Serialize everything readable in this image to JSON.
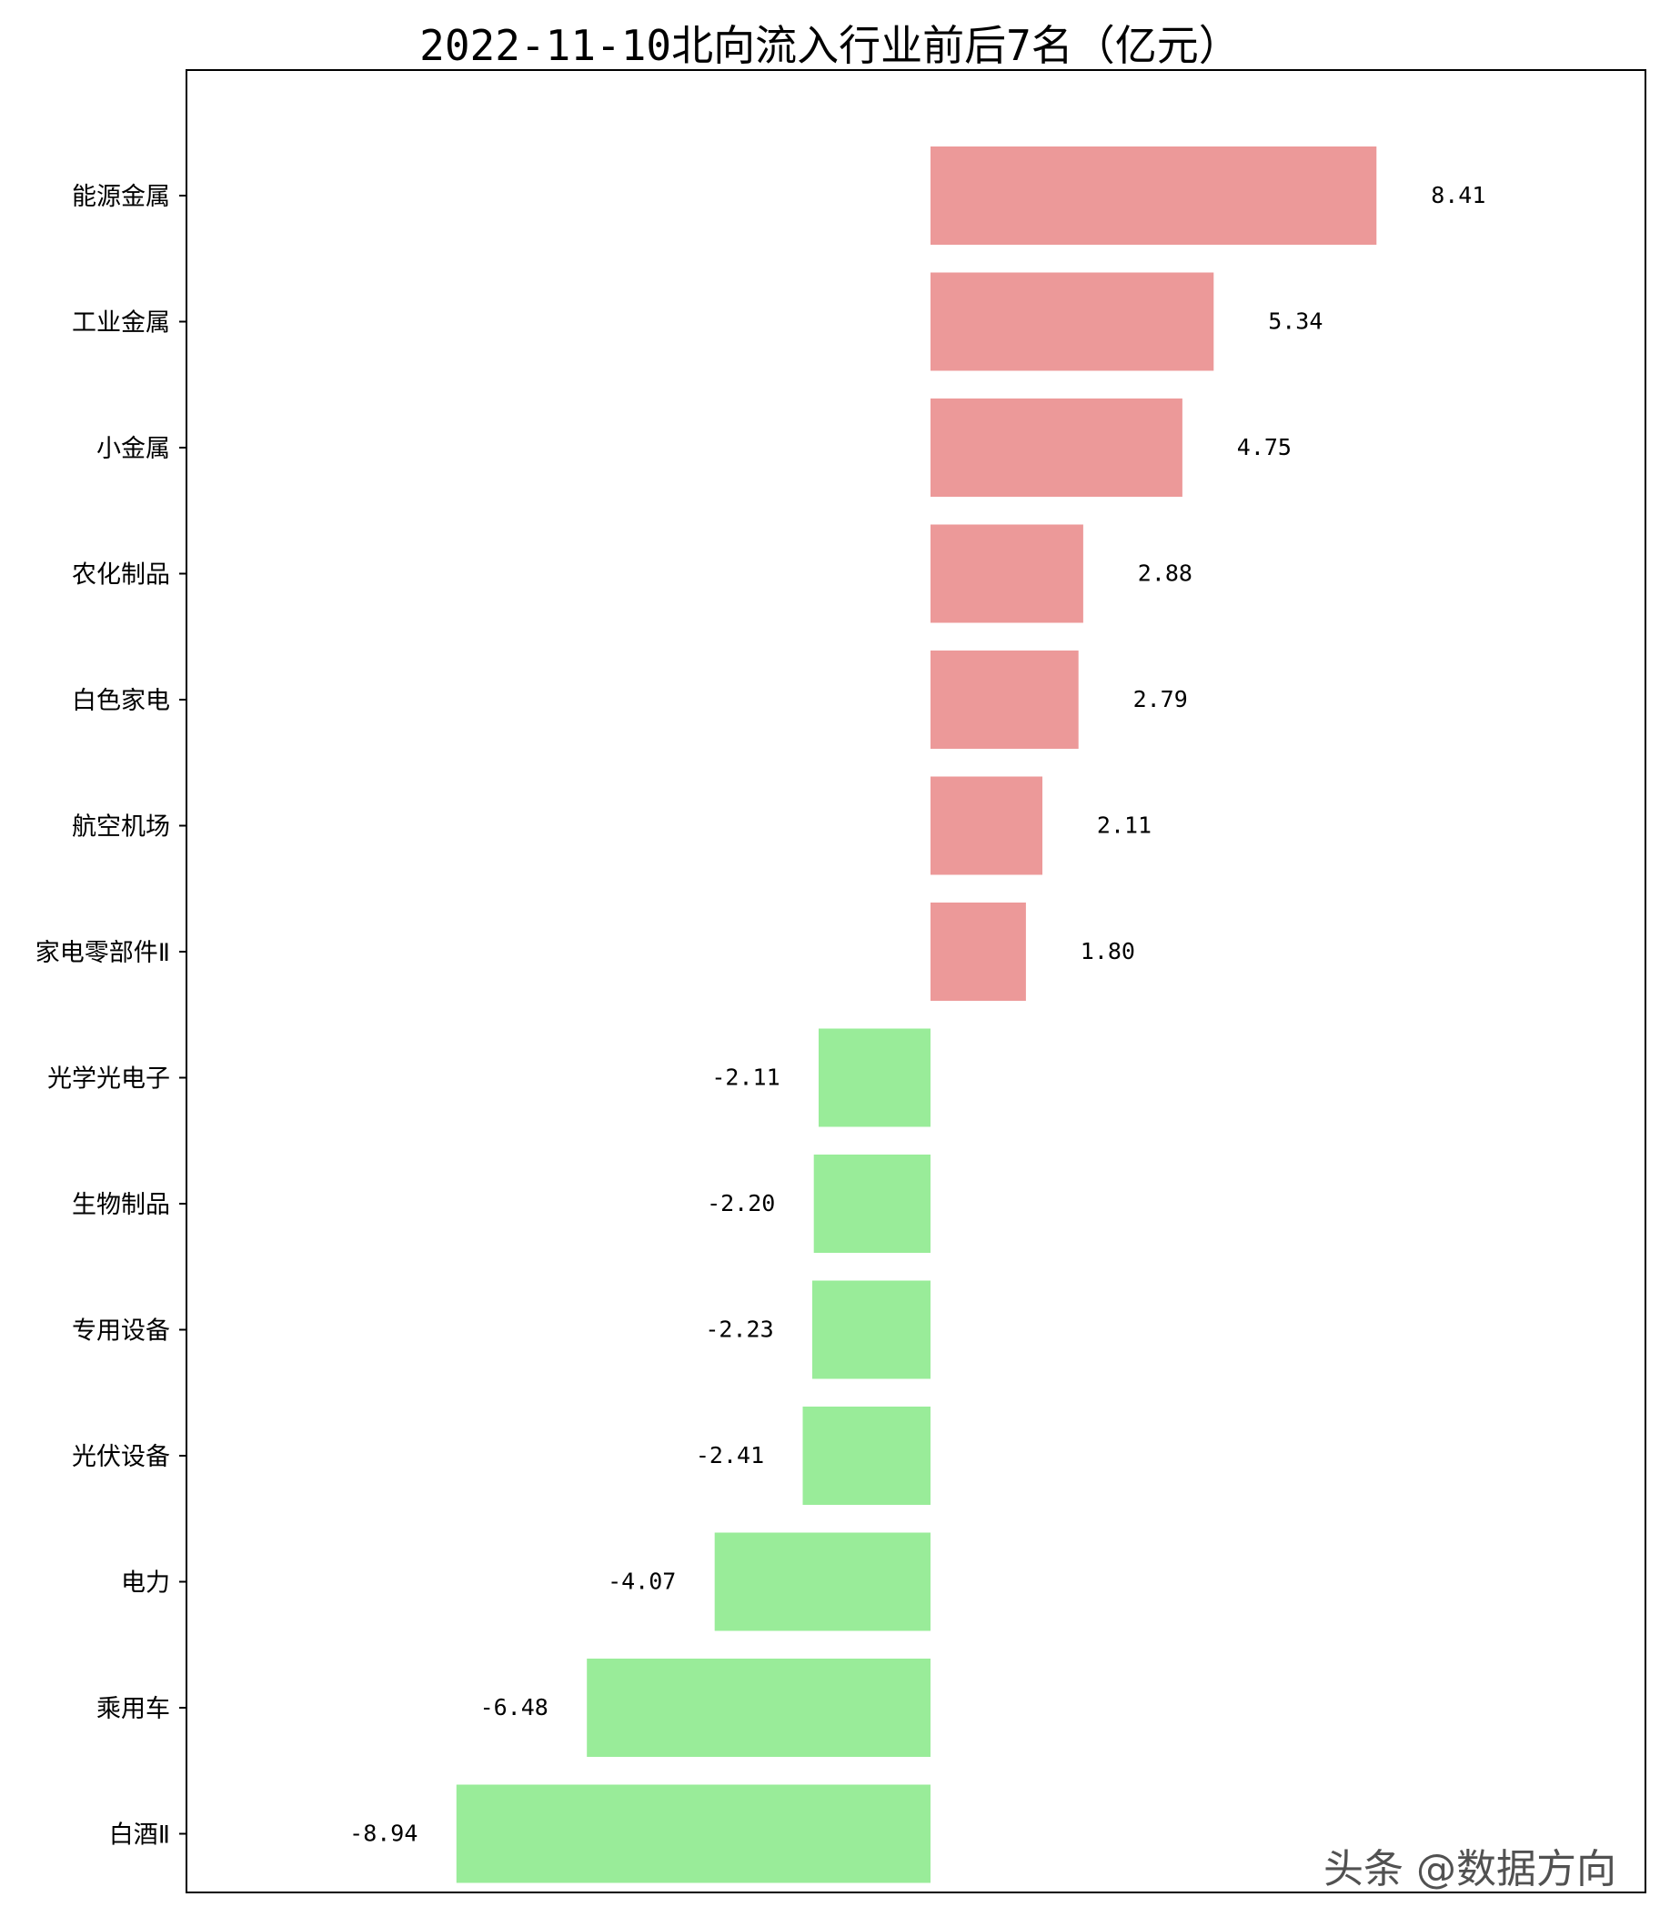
{
  "chart_data": {
    "type": "bar",
    "orientation": "horizontal",
    "title": "2022-11-10北向流入行业前后7名（亿元）",
    "categories": [
      "能源金属",
      "工业金属",
      "小金属",
      "农化制品",
      "白色家电",
      "航空机场",
      "家电零部件Ⅱ",
      "光学光电子",
      "生物制品",
      "专用设备",
      "光伏设备",
      "电力",
      "乘用车",
      "白酒Ⅱ"
    ],
    "values": [
      8.41,
      5.34,
      4.75,
      2.88,
      2.79,
      2.11,
      1.8,
      -2.11,
      -2.2,
      -2.23,
      -2.41,
      -4.07,
      -6.48,
      -8.94
    ],
    "value_labels": [
      "8.41",
      "5.34",
      "4.75",
      "2.88",
      "2.79",
      "2.11",
      "1.80",
      "-2.11",
      "-2.20",
      "-2.23",
      "-2.41",
      "-4.07",
      "-6.48",
      "-8.94"
    ],
    "colors": {
      "positive": "#ec9999",
      "negative": "#99ec99",
      "frame": "#000000"
    },
    "grid": false,
    "xaxis_visible": false
  },
  "watermark": "头条 @数据方向"
}
